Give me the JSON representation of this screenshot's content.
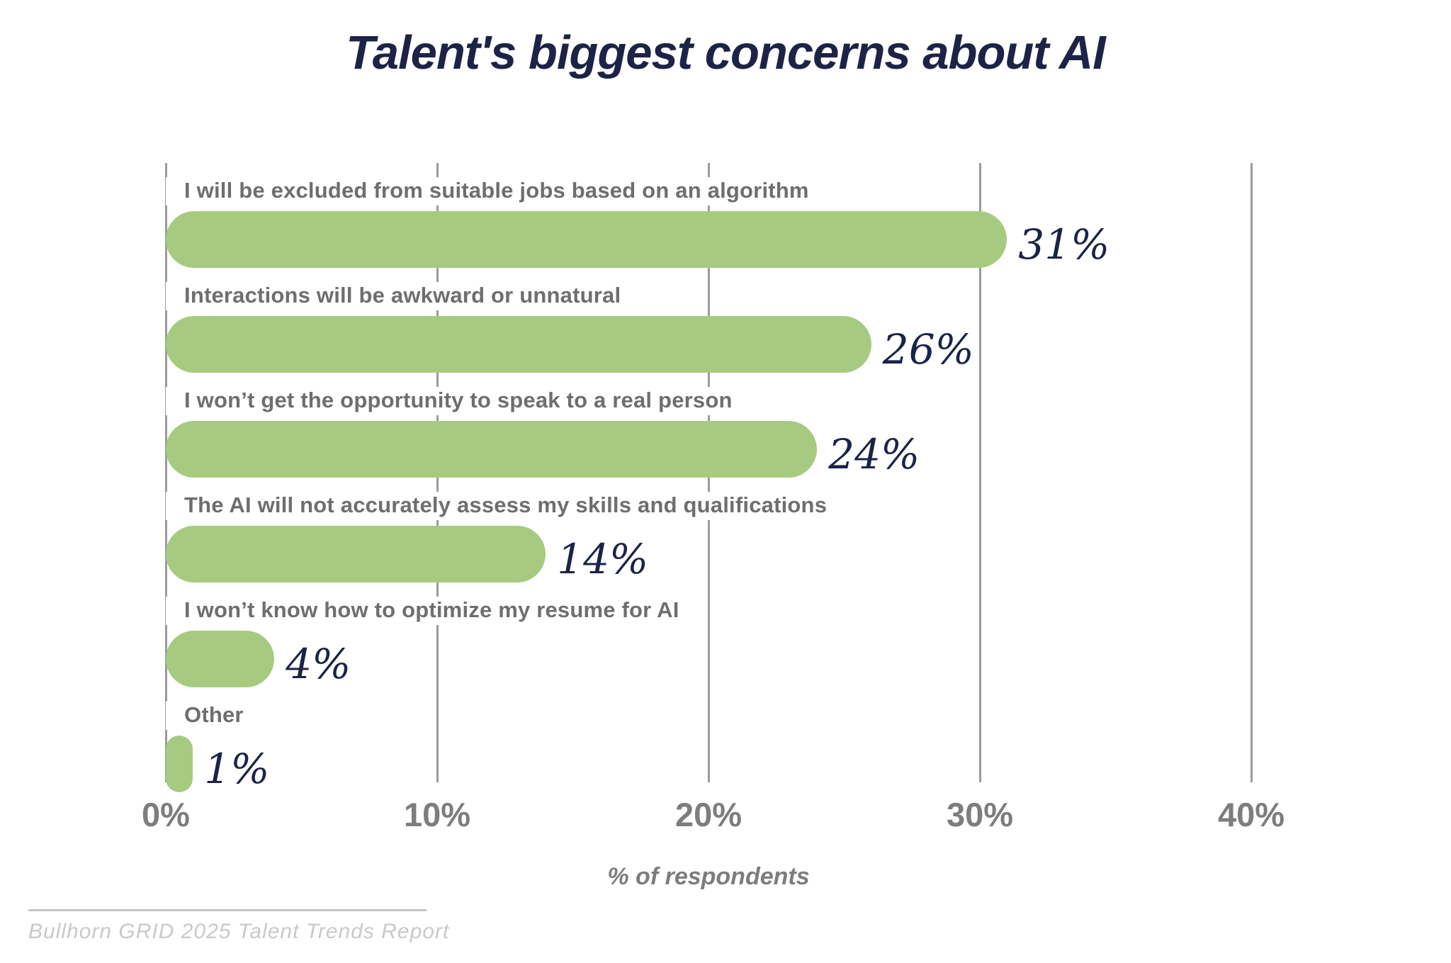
{
  "title": "Talent's biggest concerns about AI",
  "xlabel": "% of respondents",
  "source": "Bullhorn GRID 2025 Talent Trends Report",
  "colors": {
    "bar": "#a6cb80",
    "value_text": "#1b2347",
    "category_text": "#6e6e6e",
    "tick_text": "#7d7d7d",
    "gridline": "#9b9b9b",
    "title_text": "#1d2346",
    "source_line": "#c6c6c6",
    "source_text": "#c9c9c9"
  },
  "chart_data": {
    "type": "bar",
    "orientation": "horizontal",
    "title": "Talent's biggest concerns about AI",
    "xlabel": "% of respondents",
    "xlim": [
      0,
      40
    ],
    "x_ticks": [
      "0%",
      "10%",
      "20%",
      "30%",
      "40%"
    ],
    "x_tick_values": [
      0,
      10,
      20,
      30,
      40
    ],
    "grid": "vertical",
    "legend": "none",
    "categories": [
      "I will be excluded from suitable jobs based on an algorithm",
      "Interactions will be awkward or unnatural",
      "I won’t get the opportunity to speak to a real person",
      "The AI will not accurately assess my skills and qualifications",
      "I won’t know how to optimize my resume for AI",
      "Other"
    ],
    "values": [
      31,
      26,
      24,
      14,
      4,
      1
    ],
    "value_labels": [
      "31%",
      "26%",
      "24%",
      "14%",
      "4%",
      "1%"
    ]
  }
}
